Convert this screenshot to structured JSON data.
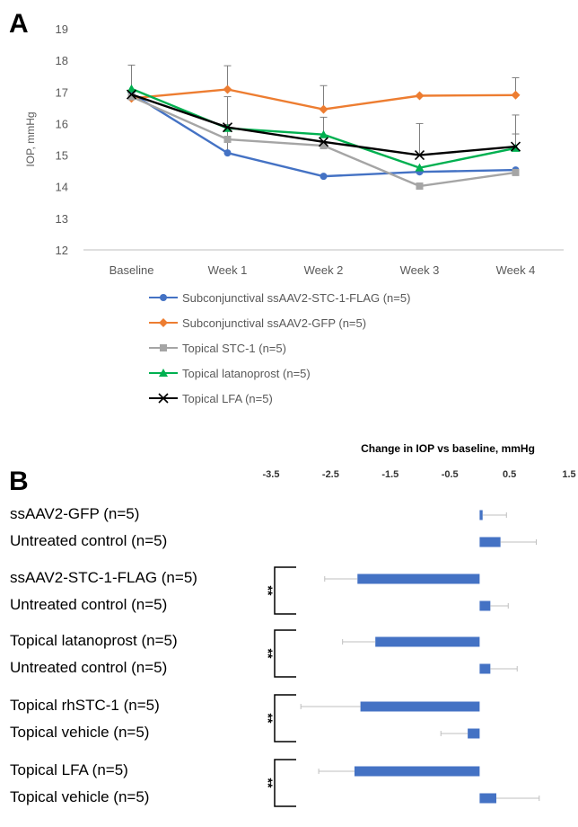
{
  "panels": {
    "a": "A",
    "b": "B"
  },
  "chart_data": [
    {
      "type": "line",
      "ylabel": "IOP, mmHg",
      "ylim": [
        12,
        19
      ],
      "yticks": [
        "19",
        "18",
        "17",
        "16",
        "15",
        "14",
        "13",
        "12"
      ],
      "categories": [
        "Baseline",
        "Week 1",
        "Week 2",
        "Week 3",
        "Week 4"
      ],
      "grid": false,
      "legend_position": "bottom",
      "series": [
        {
          "name": "Subconjunctival ssAAV2-STC-1-FLAG (n=5)",
          "color": "#4472c4",
          "marker": "circle",
          "values": [
            16.95,
            15.07,
            14.33,
            14.47,
            14.53
          ],
          "errors": [
            0.9,
            0.9,
            0,
            0,
            0
          ]
        },
        {
          "name": "Subconjunctival ssAAV2-GFP (n=5)",
          "color": "#ed7d31",
          "marker": "diamond",
          "values": [
            16.8,
            17.08,
            16.45,
            16.88,
            16.9
          ],
          "errors": [
            0,
            0.75,
            0.75,
            0,
            0.55
          ]
        },
        {
          "name": "Topical STC-1 (n=5)",
          "color": "#a5a5a5",
          "marker": "square",
          "values": [
            16.85,
            15.5,
            15.3,
            14.02,
            14.45
          ],
          "errors": [
            0,
            0,
            0,
            0,
            0
          ]
        },
        {
          "name": "Topical latanoprost (n=5)",
          "color": "#00b050",
          "marker": "triangle",
          "values": [
            17.1,
            15.85,
            15.65,
            14.6,
            15.22
          ],
          "errors": [
            0,
            1,
            0.55,
            0,
            0.45
          ]
        },
        {
          "name": "Topical LFA (n=5)",
          "color": "#000000",
          "marker": "x",
          "values": [
            16.92,
            15.88,
            15.42,
            15.0,
            15.27
          ],
          "errors": [
            0,
            0,
            0,
            1.0,
            1.0
          ]
        }
      ]
    },
    {
      "type": "bar",
      "orientation": "horizontal",
      "title": "Change in IOP vs baseline, mmHg",
      "xlim": [
        -3.5,
        1.5
      ],
      "xticks": [
        "-3.5",
        "-2.5",
        "-1.5",
        "-0.5",
        "0.5",
        "1.5"
      ],
      "bar_color": "#4472c4",
      "significance_mark": "**",
      "groups": [
        {
          "bars": [
            {
              "label": "ssAAV2-GFP (n=5)",
              "value": 0.05,
              "error": 0.4
            },
            {
              "label": "Untreated control (n=5)",
              "value": 0.35,
              "error": 0.6
            }
          ],
          "significant": false
        },
        {
          "bars": [
            {
              "label": "ssAAV2-STC-1-FLAG (n=5)",
              "value": -2.05,
              "error": 0.55
            },
            {
              "label": "Untreated control (n=5)",
              "value": 0.18,
              "error": 0.3
            }
          ],
          "significant": true
        },
        {
          "bars": [
            {
              "label": "Topical latanoprost (n=5)",
              "value": -1.75,
              "error": 0.55
            },
            {
              "label": "Untreated control (n=5)",
              "value": 0.18,
              "error": 0.45
            }
          ],
          "significant": true
        },
        {
          "bars": [
            {
              "label": "Topical rhSTC-1 (n=5)",
              "value": -2.0,
              "error": 1.0
            },
            {
              "label": "Topical vehicle (n=5)",
              "value": -0.2,
              "error": 0.45
            }
          ],
          "significant": true
        },
        {
          "bars": [
            {
              "label": "Topical LFA (n=5)",
              "value": -2.1,
              "error": 0.6
            },
            {
              "label": "Topical vehicle (n=5)",
              "value": 0.28,
              "error": 0.72
            }
          ],
          "significant": true
        }
      ]
    }
  ]
}
